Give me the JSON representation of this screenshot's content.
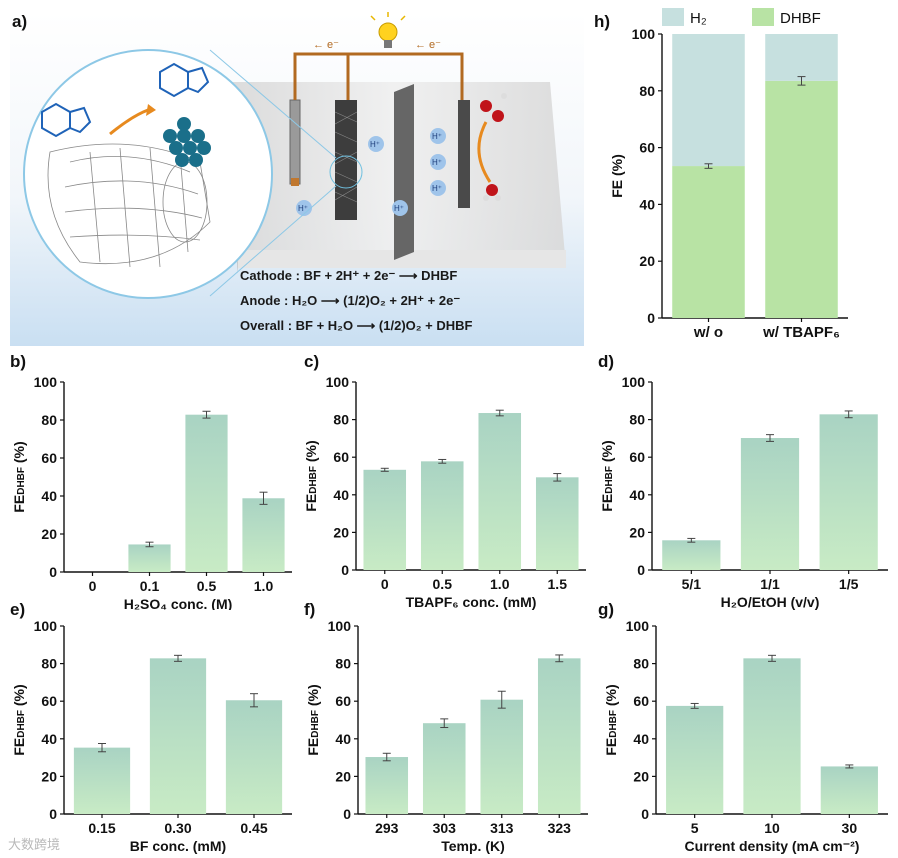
{
  "panels": {
    "a": "a)",
    "b": "b)",
    "c": "c)",
    "d": "d)",
    "e": "e)",
    "f": "f)",
    "g": "g)",
    "h": "h)"
  },
  "schematic": {
    "electron_left": "← e⁻",
    "electron_right": "← e⁻",
    "proton": "H⁺",
    "cathode_eq": "Cathode : BF + 2H⁺ + 2e⁻ ⟶ DHBF",
    "anode_eq": "Anode : H₂O ⟶ (1/2)O₂ + 2H⁺ + 2e⁻",
    "overall_eq": "Overall : BF + H₂O ⟶ (1/2)O₂ + DHBF",
    "background_color": "#cfe3f3",
    "icons": [
      "benzofuran-molecule-icon",
      "dihydrobenzofuran-molecule-icon",
      "carbon-nanotube-icon",
      "metal-cluster-icon",
      "light-bulb-icon",
      "electrolytic-cell-icon",
      "water-molecule-icon",
      "oxygen-molecule-icon"
    ]
  },
  "watermark": "大数跨境",
  "chart_data": [
    {
      "id": "h",
      "type": "bar",
      "stacked": true,
      "categories": [
        "w/ o",
        "w/ TBAPF₆"
      ],
      "series": [
        {
          "name": "DHBF",
          "values": [
            53.5,
            83.5
          ],
          "errors": [
            0.8,
            1.5
          ],
          "color": "#b8e3a4"
        },
        {
          "name": "H₂",
          "values": [
            46.5,
            16.5
          ],
          "color": "#c6e0df"
        }
      ],
      "ylabel": "FE (%)",
      "ylim": [
        0,
        100
      ],
      "yticks": [
        0,
        20,
        40,
        60,
        80,
        100
      ],
      "legend": "top"
    },
    {
      "id": "b",
      "type": "bar",
      "categories": [
        "0",
        "0.1",
        "0.5",
        "1.0"
      ],
      "values": [
        0,
        14.5,
        82.8,
        38.8
      ],
      "errors": [
        0,
        1.2,
        1.8,
        3.2
      ],
      "xlabel": "H₂SO₄ conc. (M)",
      "ylabel": "FE",
      "ylabel_sub": "DHBF",
      "ylabel_unit": " (%)",
      "ylim": [
        0,
        100
      ],
      "yticks": [
        0,
        20,
        40,
        60,
        80,
        100
      ]
    },
    {
      "id": "c",
      "type": "bar",
      "categories": [
        "0",
        "0.5",
        "1.0",
        "1.5"
      ],
      "values": [
        53.3,
        57.8,
        83.5,
        49.3
      ],
      "errors": [
        0.8,
        1.0,
        1.5,
        2.0
      ],
      "xlabel": "TBAPF₆ conc. (mM)",
      "ylabel": "FE",
      "ylabel_sub": "DHBF",
      "ylabel_unit": " (%)",
      "ylim": [
        0,
        100
      ],
      "yticks": [
        0,
        20,
        40,
        60,
        80,
        100
      ]
    },
    {
      "id": "d",
      "type": "bar",
      "categories": [
        "5/1",
        "1/1",
        "1/5"
      ],
      "values": [
        15.8,
        70.2,
        82.8
      ],
      "errors": [
        1.0,
        1.8,
        1.8
      ],
      "xlabel": "H₂O/EtOH (v/v)",
      "ylabel": "FE",
      "ylabel_sub": "DHBF",
      "ylabel_unit": " (%)",
      "ylim": [
        0,
        100
      ],
      "yticks": [
        0,
        20,
        40,
        60,
        80,
        100
      ]
    },
    {
      "id": "e",
      "type": "bar",
      "categories": [
        "0.15",
        "0.30",
        "0.45"
      ],
      "values": [
        35.3,
        82.8,
        60.5
      ],
      "errors": [
        2.2,
        1.6,
        3.5
      ],
      "xlabel": "BF conc. (mM)",
      "ylabel": "FE",
      "ylabel_sub": "DHBF",
      "ylabel_unit": " (%)",
      "ylim": [
        0,
        100
      ],
      "yticks": [
        0,
        20,
        40,
        60,
        80,
        100
      ]
    },
    {
      "id": "f",
      "type": "bar",
      "categories": [
        "293",
        "303",
        "313",
        "323"
      ],
      "values": [
        30.3,
        48.3,
        60.8,
        82.8
      ],
      "errors": [
        2.0,
        2.3,
        4.5,
        1.8
      ],
      "xlabel": "Temp. (K)",
      "ylabel": "FE",
      "ylabel_sub": "DHBF",
      "ylabel_unit": " (%)",
      "ylim": [
        0,
        100
      ],
      "yticks": [
        0,
        20,
        40,
        60,
        80,
        100
      ]
    },
    {
      "id": "g",
      "type": "bar",
      "categories": [
        "5",
        "10",
        "30"
      ],
      "values": [
        57.5,
        82.8,
        25.3
      ],
      "errors": [
        1.3,
        1.6,
        0.8
      ],
      "xlabel": "Current density (mA cm⁻²)",
      "ylabel": "FE",
      "ylabel_sub": "DHBF",
      "ylabel_unit": " (%)",
      "ylim": [
        0,
        100
      ],
      "yticks": [
        0,
        20,
        40,
        60,
        80,
        100
      ]
    }
  ]
}
